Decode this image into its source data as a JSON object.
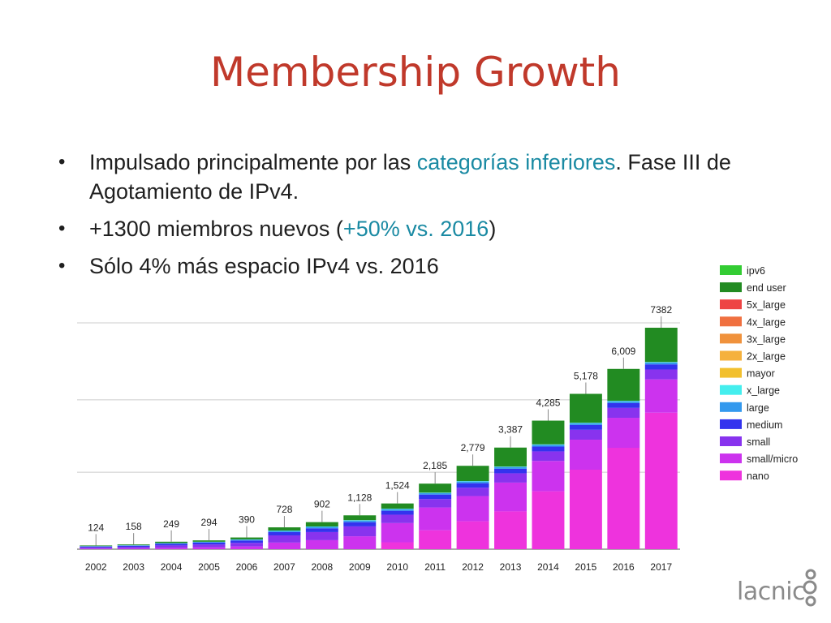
{
  "slide": {
    "title": "Membership Growth",
    "bullets": [
      {
        "parts": [
          {
            "text": "Impulsado principalmente por las ",
            "hl": false
          },
          {
            "text": "categorías inferiores",
            "hl": true
          },
          {
            "text": ". Fase III de Agotamiento de IPv4.",
            "hl": false
          }
        ]
      },
      {
        "parts": [
          {
            "text": "+1300 miembros nuevos (",
            "hl": false
          },
          {
            "text": "+50% vs. 2016",
            "hl": true
          },
          {
            "text": ")",
            "hl": false
          }
        ]
      },
      {
        "parts": [
          {
            "text": "Sólo 4% más espacio IPv4 vs. 2016",
            "hl": false
          }
        ]
      }
    ],
    "logo_text": "lacnic"
  },
  "chart_data": {
    "type": "bar",
    "stacked": true,
    "title": "",
    "xlabel": "",
    "ylabel": "",
    "ylim": [
      0,
      7382
    ],
    "grid": true,
    "legend_position": "right",
    "categories": [
      "2002",
      "2003",
      "2004",
      "2005",
      "2006",
      "2007",
      "2008",
      "2009",
      "2010",
      "2011",
      "2012",
      "2013",
      "2014",
      "2015",
      "2016",
      "2017"
    ],
    "totals": [
      "124",
      "158",
      "249",
      "294",
      "390",
      "728",
      "902",
      "1,128",
      "1,524",
      "2,185",
      "2,779",
      "3,387",
      "4,285",
      "5,178",
      "6,009",
      "7382"
    ],
    "series": [
      {
        "name": "nano",
        "color": "#ee33dd",
        "values": [
          0,
          0,
          0,
          0,
          0,
          0,
          0,
          0,
          230,
          630,
          930,
          1260,
          1930,
          2650,
          3380,
          4550
        ]
      },
      {
        "name": "small/micro",
        "color": "#cc33ee",
        "values": [
          20,
          25,
          45,
          60,
          90,
          220,
          300,
          430,
          640,
          760,
          840,
          960,
          1010,
          1000,
          1000,
          1110
        ]
      },
      {
        "name": "small",
        "color": "#8833ee",
        "values": [
          40,
          50,
          80,
          95,
          120,
          240,
          270,
          330,
          280,
          280,
          280,
          310,
          320,
          330,
          330,
          330
        ]
      },
      {
        "name": "medium",
        "color": "#3333ee",
        "values": [
          30,
          40,
          55,
          65,
          80,
          110,
          125,
          140,
          130,
          150,
          150,
          150,
          160,
          160,
          160,
          170
        ]
      },
      {
        "name": "large",
        "color": "#3399ee",
        "values": [
          10,
          13,
          20,
          22,
          30,
          40,
          50,
          55,
          55,
          50,
          55,
          60,
          60,
          60,
          60,
          65
        ]
      },
      {
        "name": "x_large",
        "color": "#44eeee",
        "values": [
          3,
          4,
          5,
          6,
          7,
          10,
          12,
          14,
          15,
          15,
          15,
          15,
          15,
          15,
          15,
          15
        ]
      },
      {
        "name": "mayor",
        "color": "#f2c02e",
        "values": [
          0,
          0,
          0,
          0,
          0,
          0,
          0,
          0,
          0,
          0,
          0,
          0,
          0,
          0,
          0,
          0
        ]
      },
      {
        "name": "2x_large",
        "color": "#f5b13d",
        "values": [
          0,
          0,
          0,
          0,
          0,
          0,
          0,
          0,
          0,
          0,
          0,
          0,
          0,
          0,
          0,
          0
        ]
      },
      {
        "name": "3x_large",
        "color": "#f0923c",
        "values": [
          0,
          0,
          0,
          0,
          0,
          0,
          0,
          0,
          0,
          0,
          0,
          0,
          0,
          0,
          0,
          0
        ]
      },
      {
        "name": "4x_large",
        "color": "#f07040",
        "values": [
          0,
          0,
          0,
          0,
          0,
          0,
          0,
          0,
          0,
          0,
          0,
          0,
          0,
          0,
          0,
          0
        ]
      },
      {
        "name": "5x_large",
        "color": "#ee4444",
        "values": [
          0,
          0,
          0,
          0,
          0,
          0,
          0,
          0,
          0,
          0,
          0,
          0,
          0,
          0,
          0,
          0
        ]
      },
      {
        "name": "end user",
        "color": "#228b22",
        "values": [
          21,
          26,
          44,
          46,
          63,
          108,
          145,
          159,
          174,
          300,
          509,
          632,
          790,
          963,
          1064,
          1142
        ]
      },
      {
        "name": "ipv6",
        "color": "#33cc33",
        "values": [
          0,
          0,
          0,
          0,
          0,
          0,
          0,
          0,
          0,
          0,
          0,
          0,
          0,
          0,
          0,
          0
        ]
      }
    ]
  }
}
